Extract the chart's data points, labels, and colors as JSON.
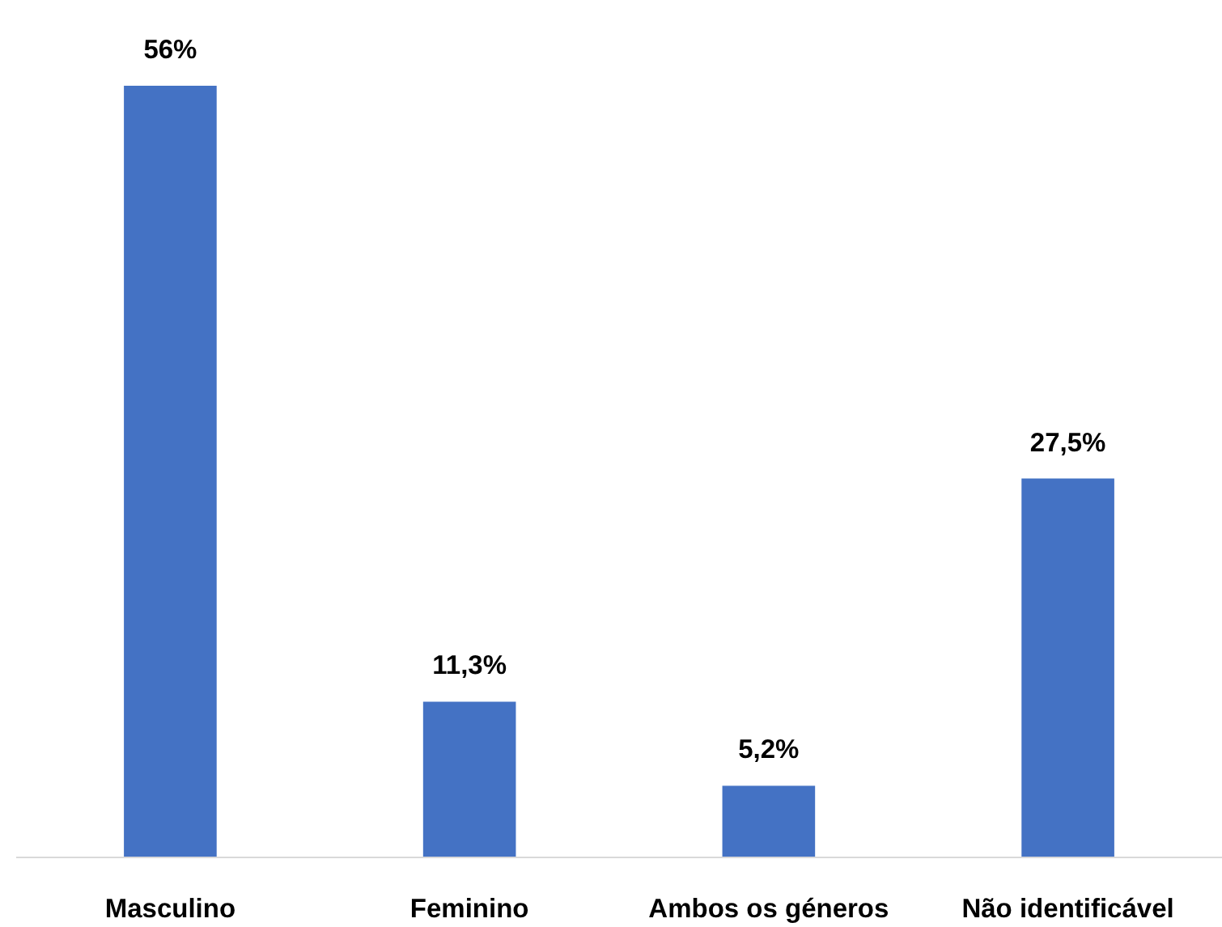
{
  "chart_data": {
    "type": "bar",
    "categories": [
      "Masculino",
      "Feminino",
      "Ambos os géneros",
      "Não identificável"
    ],
    "values": [
      56,
      11.3,
      5.2,
      27.5
    ],
    "color": "#4472c4",
    "value_labels": [
      "56%",
      "11,3%",
      "5,2%",
      "27,5%"
    ]
  }
}
